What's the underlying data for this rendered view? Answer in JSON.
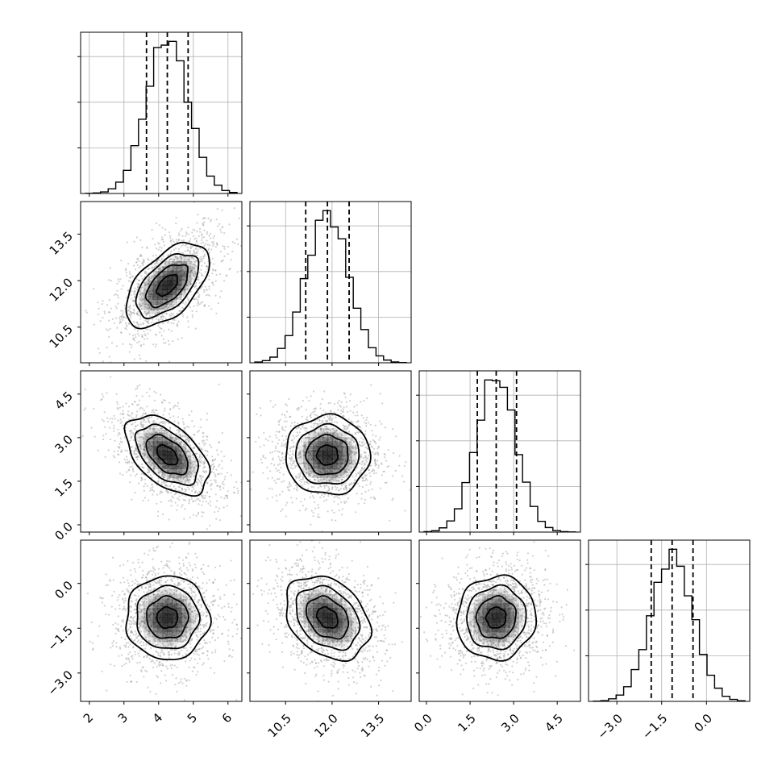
{
  "chart_data": {
    "type": "corner",
    "title": "",
    "n_params": 4,
    "parameters": [
      {
        "label": "",
        "mean": 4.25,
        "std": 0.6,
        "range": [
          1.75,
          6.4
        ],
        "ticks": [
          2,
          3,
          4,
          5,
          6
        ],
        "tick_labels": [
          "2",
          "3",
          "4",
          "5",
          "6"
        ],
        "quantiles": [
          3.65,
          4.25,
          4.85
        ]
      },
      {
        "label": "",
        "mean": 11.85,
        "std": 0.68,
        "range": [
          9.35,
          14.55
        ],
        "ticks": [
          10.5,
          12.0,
          13.5
        ],
        "tick_labels": [
          "10.5",
          "12.0",
          "13.5"
        ],
        "quantiles": [
          11.15,
          11.85,
          12.55
        ]
      },
      {
        "label": "",
        "mean": 2.4,
        "std": 0.68,
        "range": [
          -0.25,
          5.3
        ],
        "ticks": [
          0.0,
          1.5,
          3.0,
          4.5
        ],
        "tick_labels": [
          "0.0",
          "1.5",
          "3.0",
          "4.5"
        ],
        "quantiles": [
          1.75,
          2.4,
          3.1
        ]
      },
      {
        "label": "",
        "mean": -1.15,
        "std": 0.7,
        "range": [
          -3.95,
          1.45
        ],
        "ticks": [
          -3.0,
          -1.5,
          0.0
        ],
        "tick_labels": [
          "−3.0",
          "−1.5",
          "0.0"
        ],
        "quantiles": [
          -1.85,
          -1.15,
          -0.45
        ]
      }
    ],
    "correlations": [
      [
        1.0,
        0.55,
        -0.5,
        0.0
      ],
      [
        0.55,
        1.0,
        0.0,
        -0.3
      ],
      [
        -0.5,
        0.0,
        1.0,
        0.05
      ],
      [
        0.0,
        -0.3,
        0.05,
        1.0
      ]
    ],
    "quantiles_shown": [
      0.16,
      0.5,
      0.84
    ],
    "histogram_bins": 20,
    "contour_levels_sigma": [
      0.5,
      1.0,
      1.5,
      2.0
    ],
    "grid": true,
    "colors": {
      "line": "#000000",
      "points": "#9a9a9a",
      "grid": "#b0b0b0",
      "density": "#000000"
    }
  }
}
